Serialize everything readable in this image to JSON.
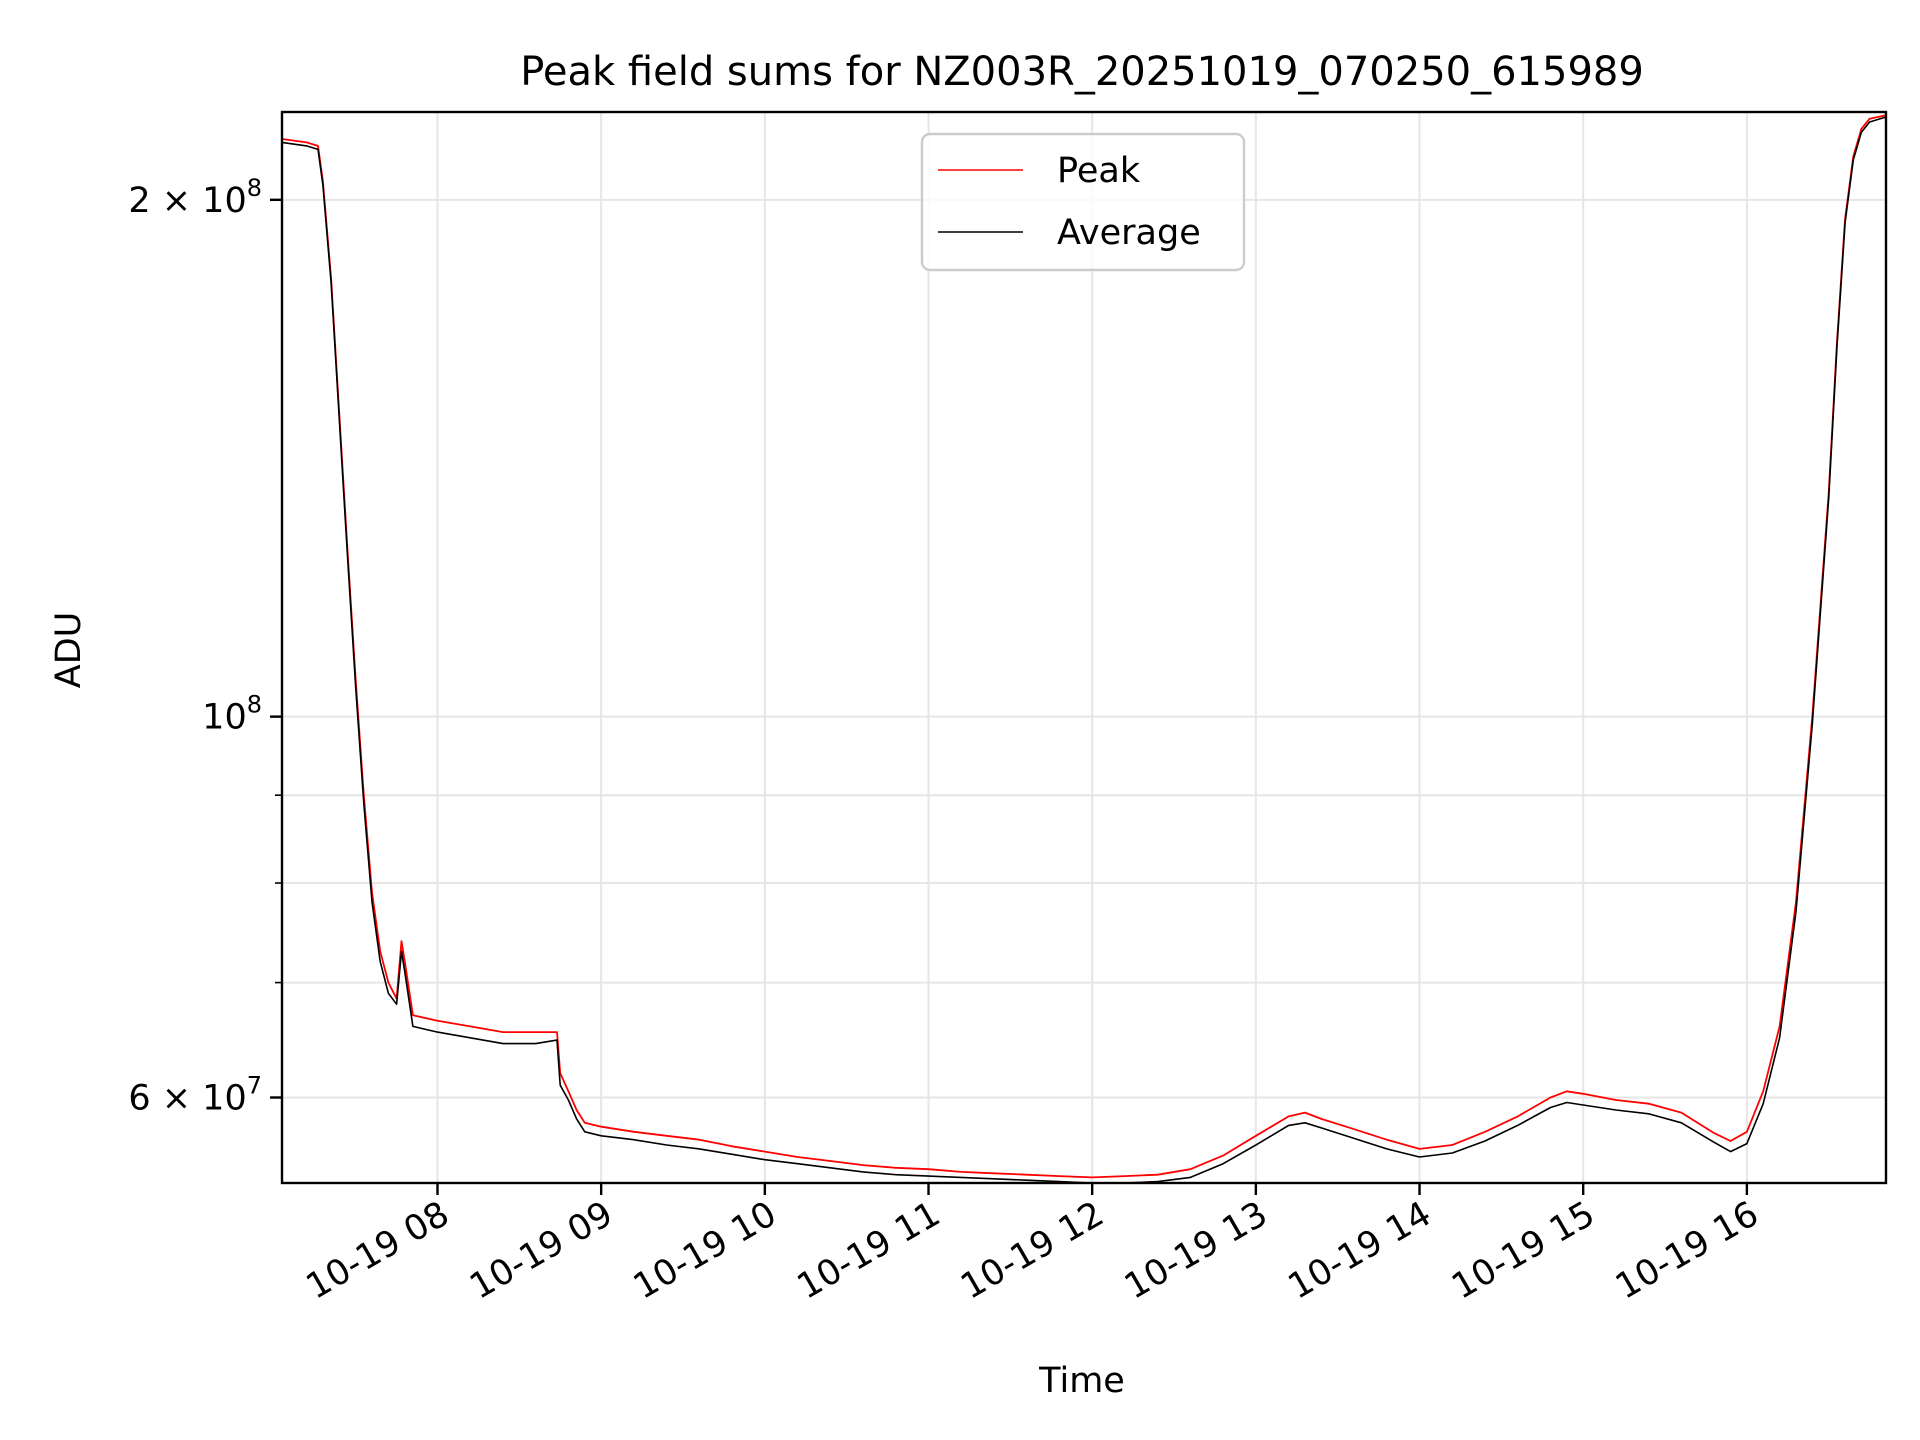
{
  "chart_data": {
    "type": "line",
    "title": "Peak field sums for NZ003R_20251019_070250_615989",
    "xlabel": "Time",
    "ylabel": "ADU",
    "yscale": "log",
    "ylim": [
      53500000,
      225000000
    ],
    "xlim": [
      7.05,
      16.85
    ],
    "x_unit": "hour of 2025-10-19",
    "grid": true,
    "legend_location": "upper center",
    "x_ticks": [
      {
        "value": 8,
        "label": "10-19 08"
      },
      {
        "value": 9,
        "label": "10-19 09"
      },
      {
        "value": 10,
        "label": "10-19 10"
      },
      {
        "value": 11,
        "label": "10-19 11"
      },
      {
        "value": 12,
        "label": "10-19 12"
      },
      {
        "value": 13,
        "label": "10-19 13"
      },
      {
        "value": 14,
        "label": "10-19 14"
      },
      {
        "value": 15,
        "label": "10-19 15"
      },
      {
        "value": 16,
        "label": "10-19 16"
      }
    ],
    "y_ticks": [
      {
        "value": 200000000,
        "base": "2 × 10",
        "exp": "8"
      },
      {
        "value": 100000000,
        "base": "10",
        "exp": "8"
      },
      {
        "value": 60000000,
        "base": "6 × 10",
        "exp": "7"
      }
    ],
    "y_minor_ticks": [
      70000000,
      80000000,
      90000000
    ],
    "series": [
      {
        "name": "Peak",
        "color": "#ff0000",
        "x": [
          7.05,
          7.2,
          7.27,
          7.3,
          7.35,
          7.4,
          7.45,
          7.5,
          7.55,
          7.6,
          7.65,
          7.7,
          7.75,
          7.78,
          7.8,
          7.85,
          8.0,
          8.2,
          8.4,
          8.6,
          8.73,
          8.75,
          8.8,
          8.85,
          8.9,
          9.0,
          9.2,
          9.4,
          9.6,
          9.8,
          10.0,
          10.2,
          10.4,
          10.6,
          10.8,
          11.0,
          11.2,
          11.4,
          11.6,
          11.8,
          12.0,
          12.2,
          12.4,
          12.6,
          12.8,
          13.0,
          13.2,
          13.3,
          13.4,
          13.6,
          13.8,
          14.0,
          14.2,
          14.4,
          14.6,
          14.8,
          14.9,
          15.0,
          15.2,
          15.4,
          15.6,
          15.8,
          15.9,
          16.0,
          16.1,
          16.2,
          16.3,
          16.4,
          16.5,
          16.55,
          16.6,
          16.65,
          16.7,
          16.75,
          16.85
        ],
        "y": [
          217000000,
          216000000,
          215000000,
          205000000,
          180000000,
          150000000,
          125000000,
          105000000,
          90000000,
          79000000,
          73000000,
          70000000,
          68500000,
          74000000,
          72000000,
          67000000,
          66500000,
          66000000,
          65500000,
          65500000,
          65500000,
          62000000,
          60500000,
          59000000,
          58000000,
          57700000,
          57300000,
          57000000,
          56700000,
          56200000,
          55800000,
          55400000,
          55100000,
          54800000,
          54600000,
          54500000,
          54300000,
          54200000,
          54100000,
          54000000,
          53900000,
          54000000,
          54100000,
          54500000,
          55500000,
          57000000,
          58500000,
          58800000,
          58300000,
          57500000,
          56700000,
          56000000,
          56300000,
          57300000,
          58500000,
          60000000,
          60500000,
          60300000,
          59800000,
          59500000,
          58800000,
          57200000,
          56600000,
          57300000,
          60500000,
          66000000,
          78000000,
          100000000,
          135000000,
          165000000,
          195000000,
          212000000,
          220000000,
          223000000,
          224000000
        ]
      },
      {
        "name": "Average",
        "color": "#000000",
        "x": [
          7.05,
          7.2,
          7.27,
          7.3,
          7.35,
          7.4,
          7.45,
          7.5,
          7.55,
          7.6,
          7.65,
          7.7,
          7.75,
          7.78,
          7.8,
          7.85,
          8.0,
          8.2,
          8.4,
          8.6,
          8.73,
          8.75,
          8.8,
          8.85,
          8.9,
          9.0,
          9.2,
          9.4,
          9.6,
          9.8,
          10.0,
          10.2,
          10.4,
          10.6,
          10.8,
          11.0,
          11.2,
          11.4,
          11.6,
          11.8,
          12.0,
          12.2,
          12.4,
          12.6,
          12.8,
          13.0,
          13.2,
          13.3,
          13.4,
          13.6,
          13.8,
          14.0,
          14.2,
          14.4,
          14.6,
          14.8,
          14.9,
          15.0,
          15.2,
          15.4,
          15.6,
          15.8,
          15.9,
          16.0,
          16.1,
          16.2,
          16.3,
          16.4,
          16.5,
          16.55,
          16.6,
          16.65,
          16.7,
          16.75,
          16.85
        ],
        "y": [
          216000000,
          215000000,
          214000000,
          204000000,
          179000000,
          149000000,
          124000000,
          104000000,
          89000000,
          78000000,
          72000000,
          69000000,
          68000000,
          73000000,
          71000000,
          66000000,
          65500000,
          65000000,
          64500000,
          64500000,
          64800000,
          61000000,
          59800000,
          58300000,
          57300000,
          57000000,
          56700000,
          56300000,
          56000000,
          55600000,
          55200000,
          54900000,
          54600000,
          54300000,
          54100000,
          54000000,
          53900000,
          53800000,
          53700000,
          53600000,
          53500000,
          53500000,
          53600000,
          53900000,
          54900000,
          56300000,
          57800000,
          58000000,
          57600000,
          56800000,
          56000000,
          55400000,
          55700000,
          56600000,
          57800000,
          59200000,
          59600000,
          59400000,
          59000000,
          58700000,
          58000000,
          56500000,
          55800000,
          56400000,
          59500000,
          65000000,
          77000000,
          99000000,
          134000000,
          164000000,
          194000000,
          211000000,
          219000000,
          222000000,
          223500000
        ]
      }
    ]
  }
}
